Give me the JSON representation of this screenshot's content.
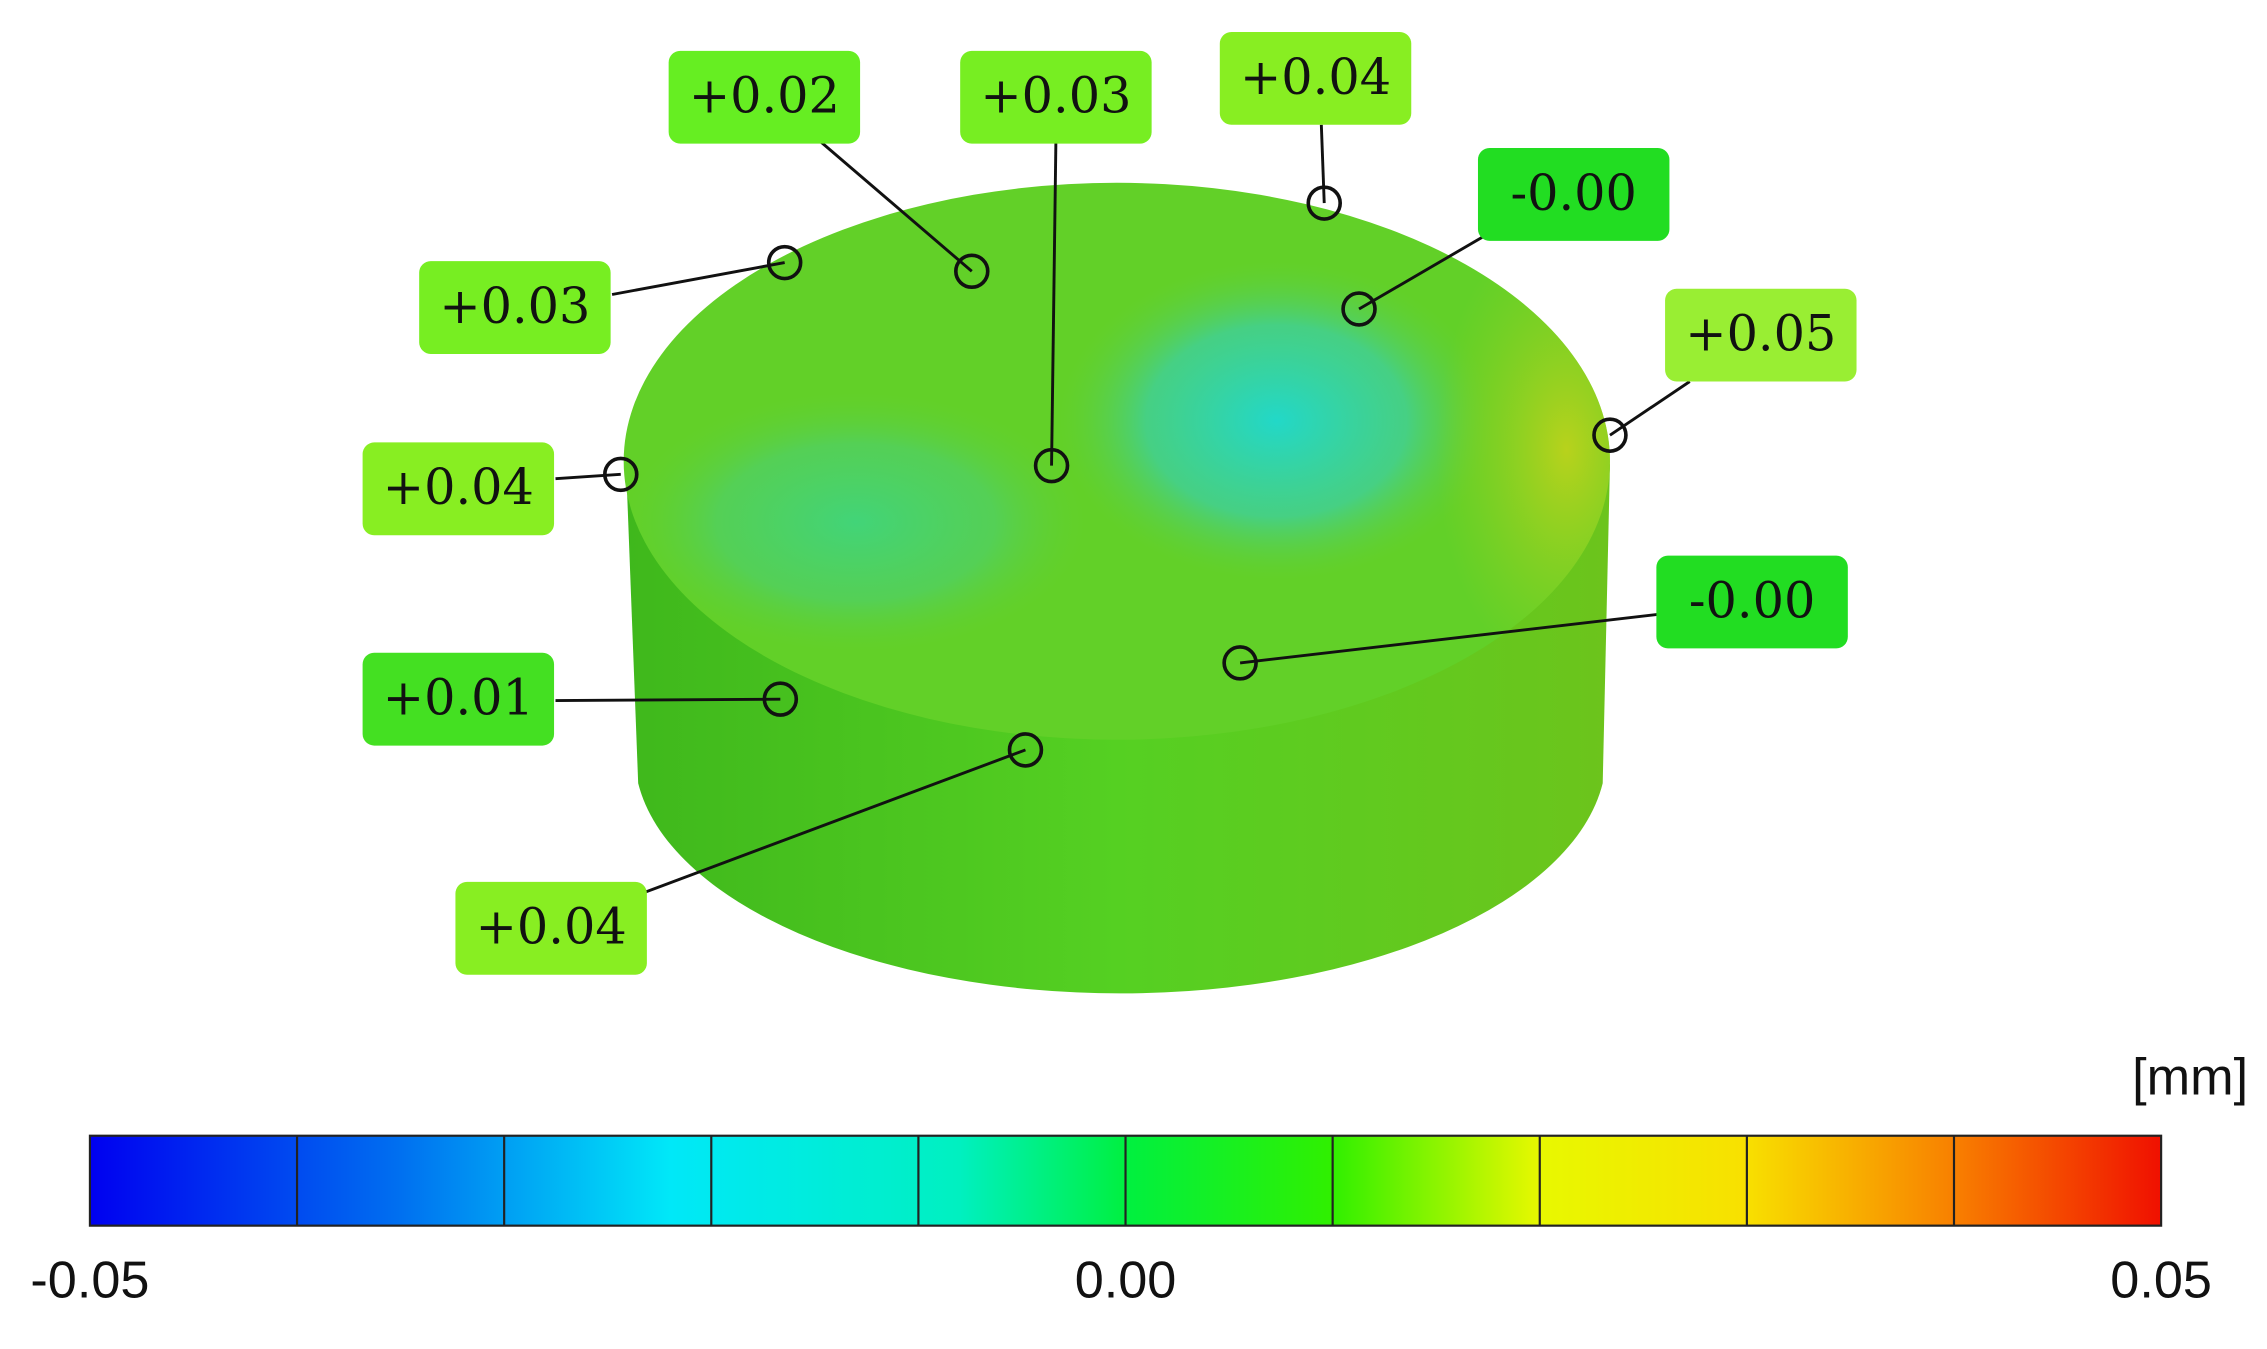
{
  "callouts": [
    {
      "label": "+0.02"
    },
    {
      "label": "+0.03"
    },
    {
      "label": "+0.04"
    },
    {
      "label": "-0.00"
    },
    {
      "label": "+0.03"
    },
    {
      "label": "+0.05"
    },
    {
      "label": "+0.04"
    },
    {
      "label": "-0.00"
    },
    {
      "label": "+0.01"
    },
    {
      "label": "+0.04"
    }
  ],
  "colorbar": {
    "unit": "[mm]",
    "ticks": [
      "-0.05",
      "0.00",
      "0.05"
    ]
  }
}
